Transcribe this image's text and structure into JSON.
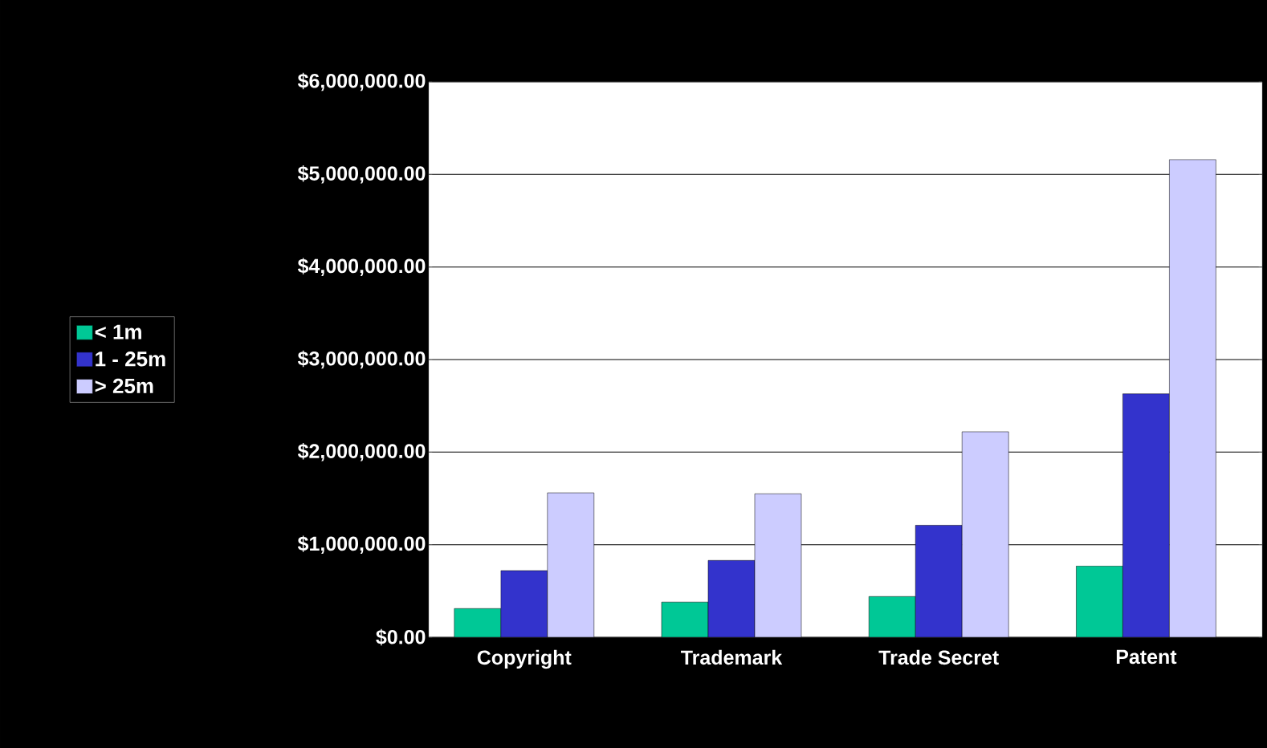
{
  "chart_data": {
    "type": "bar",
    "categories": [
      "Copyright",
      "Trademark",
      "Trade Secret",
      "Patent"
    ],
    "series": [
      {
        "name": "< 1m",
        "color": "#00c896",
        "values": [
          310000,
          380000,
          440000,
          770000
        ]
      },
      {
        "name": "1 - 25m",
        "color": "#3333cc",
        "values": [
          720000,
          830000,
          1210000,
          2630000
        ]
      },
      {
        "name": "> 25m",
        "color": "#ccccff",
        "values": [
          1560000,
          1550000,
          2220000,
          5160000
        ]
      }
    ],
    "ylim": [
      0,
      6000000
    ],
    "yticks": [
      {
        "value": 0,
        "label": "$0.00"
      },
      {
        "value": 1000000,
        "label": "$1,000,000.00"
      },
      {
        "value": 2000000,
        "label": "$2,000,000.00"
      },
      {
        "value": 3000000,
        "label": "$3,000,000.00"
      },
      {
        "value": 4000000,
        "label": "$4,000,000.00"
      },
      {
        "value": 5000000,
        "label": "$5,000,000.00"
      },
      {
        "value": 6000000,
        "label": "$6,000,000.00"
      }
    ],
    "grid": "y",
    "legend": "left"
  }
}
